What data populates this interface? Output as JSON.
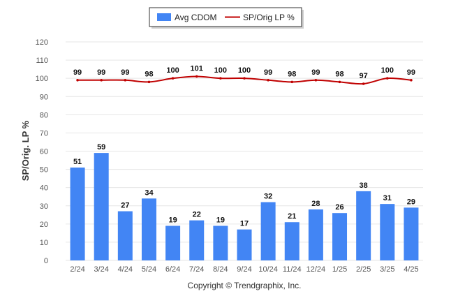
{
  "chart_data": {
    "type": "bar",
    "categories": [
      "2/24",
      "3/24",
      "4/24",
      "5/24",
      "6/24",
      "7/24",
      "8/24",
      "9/24",
      "10/24",
      "11/24",
      "12/24",
      "1/25",
      "2/25",
      "3/25",
      "4/25"
    ],
    "series": [
      {
        "name": "Avg CDOM",
        "type": "bar",
        "color": "#4285f4",
        "values": [
          51,
          59,
          27,
          34,
          19,
          22,
          19,
          17,
          32,
          21,
          28,
          26,
          38,
          31,
          29
        ]
      },
      {
        "name": "SP/Orig LP %",
        "type": "line",
        "color": "#c00000",
        "values": [
          99,
          99,
          99,
          98,
          100,
          101,
          100,
          100,
          99,
          98,
          99,
          98,
          97,
          100,
          99
        ]
      }
    ],
    "ylabel": "SP/Orig. LP %",
    "ylim": [
      0,
      120
    ],
    "yticks": [
      0,
      10,
      20,
      30,
      40,
      50,
      60,
      70,
      80,
      90,
      100,
      110,
      120
    ],
    "grid": true,
    "legend_position": "top-center"
  },
  "footer": {
    "credit": "Copyright © Trendgraphix, Inc."
  }
}
